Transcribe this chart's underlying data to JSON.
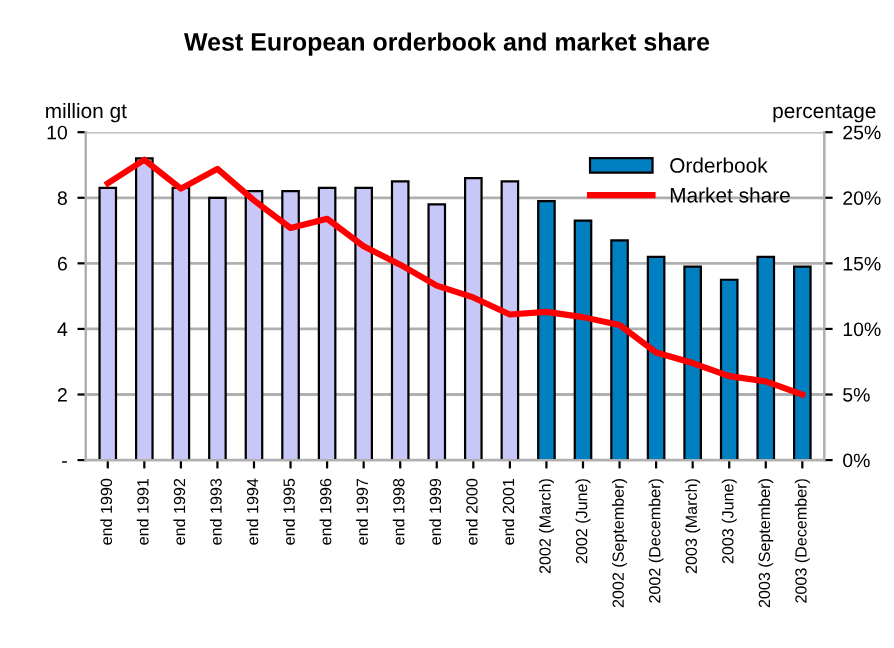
{
  "chart_data": {
    "type": "bar",
    "title": "West European orderbook and market share",
    "ylabel": "million gt",
    "y2label": "percentage",
    "categories": [
      "end 1990",
      "end 1991",
      "end 1992",
      "end 1993",
      "end 1994",
      "end 1995",
      "end 1996",
      "end 1997",
      "end 1998",
      "end 1999",
      "end 2000",
      "end 2001",
      "2002 (March)",
      "2002 (June)",
      "2002 (September)",
      "2002 (December)",
      "2003 (March)",
      "2003 (June)",
      "2003 (September)",
      "2003 (December)"
    ],
    "series": [
      {
        "name": "Orderbook",
        "color": "#0080c0",
        "colors": [
          "#c8c8f8",
          "#c8c8f8",
          "#c8c8f8",
          "#c8c8f8",
          "#c8c8f8",
          "#c8c8f8",
          "#c8c8f8",
          "#c8c8f8",
          "#c8c8f8",
          "#c8c8f8",
          "#c8c8f8",
          "#c8c8f8",
          "#0080c0",
          "#0080c0",
          "#0080c0",
          "#0080c0",
          "#0080c0",
          "#0080c0",
          "#0080c0",
          "#0080c0"
        ],
        "values": [
          8.3,
          9.2,
          8.3,
          8.0,
          8.2,
          8.2,
          8.3,
          8.3,
          8.5,
          7.8,
          8.6,
          8.5,
          7.9,
          7.3,
          6.7,
          6.2,
          5.9,
          5.5,
          6.2,
          5.9
        ]
      },
      {
        "name": "Market share",
        "type": "line",
        "axis": "y2",
        "color": "#ff0000",
        "values": [
          21.1,
          22.9,
          20.7,
          22.2,
          19.8,
          17.7,
          18.4,
          16.3,
          14.9,
          13.3,
          12.4,
          11.1,
          11.3,
          10.9,
          10.3,
          8.2,
          7.4,
          6.4,
          6.0,
          5.0
        ]
      }
    ],
    "ylim": [
      0,
      10
    ],
    "yticks": [
      {
        "value": 0,
        "label": "-"
      },
      2,
      4,
      6,
      8,
      10
    ],
    "y2lim": [
      0,
      25
    ],
    "y2ticks": [
      {
        "value": 0,
        "label": "0%"
      },
      {
        "value": 5,
        "label": "5%"
      },
      {
        "value": 10,
        "label": "10%"
      },
      {
        "value": 15,
        "label": "15%"
      },
      {
        "value": 20,
        "label": "20%"
      },
      {
        "value": 25,
        "label": "25%"
      }
    ],
    "grid": "y",
    "legend": "top right",
    "marker": "none",
    "line_style": "solid"
  }
}
